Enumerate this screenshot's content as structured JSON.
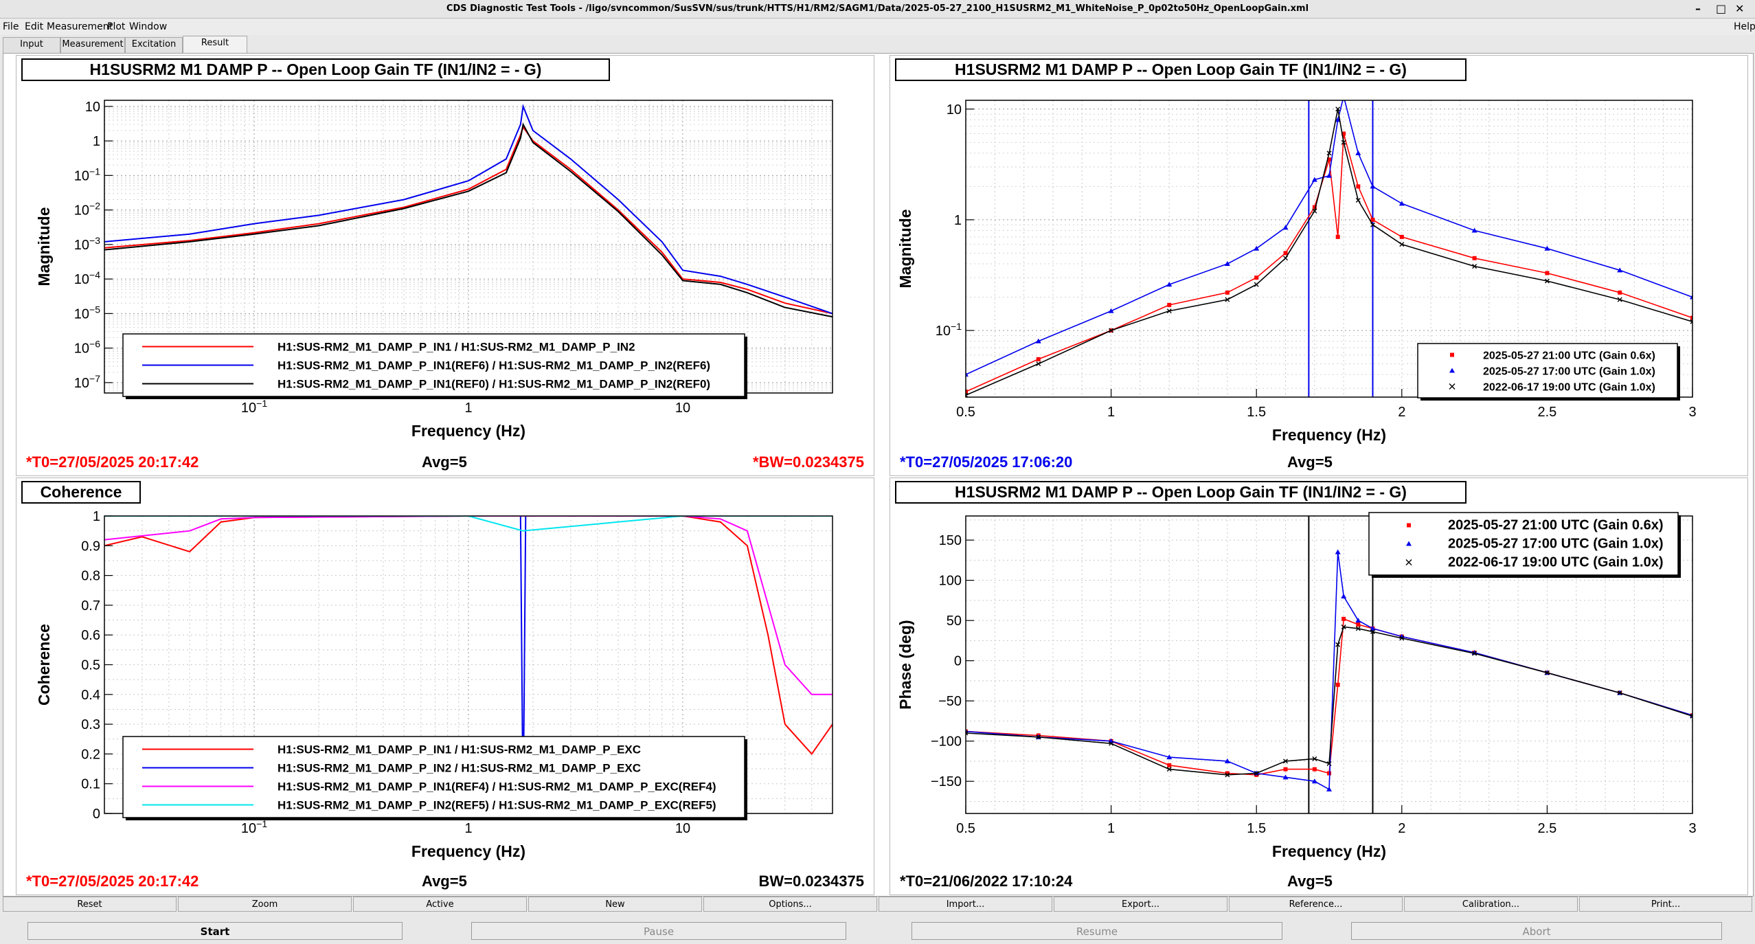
{
  "window": {
    "title": "CDS Diagnostic Test Tools - /ligo/svncommon/SusSVN/sus/trunk/HTTS/H1/RM2/SAGM1/Data/2025-05-27_2100_H1SUSRM2_M1_WhiteNoise_P_0p02to50Hz_OpenLoopGain.xml",
    "controls": [
      "–",
      "□",
      "✕"
    ]
  },
  "menu": {
    "items": [
      "File",
      "Edit",
      "Measurement",
      "Plot",
      "Window"
    ],
    "help": "Help"
  },
  "tabs": [
    "Input",
    "Measurement",
    "Excitation",
    "Result"
  ],
  "active_tab": "Result",
  "panels": {
    "tl": {
      "title": "H1SUSRM2 M1 DAMP P -- Open Loop Gain TF (IN1/IN2 = - G)",
      "ylabel": "Magnitude",
      "xlabel": "Frequency (Hz)",
      "yticks": [
        "10",
        "1",
        "10^-1",
        "10^-2",
        "10^-3",
        "10^-4",
        "10^-5",
        "10^-6",
        "10^-7"
      ],
      "xticks": [
        "10^-1",
        "1",
        "10"
      ],
      "legend": [
        {
          "label": "H1:SUS-RM2_M1_DAMP_P_IN1 / H1:SUS-RM2_M1_DAMP_P_IN2",
          "color": "#ff0000"
        },
        {
          "label": "H1:SUS-RM2_M1_DAMP_P_IN1(REF6) / H1:SUS-RM2_M1_DAMP_P_IN2(REF6)",
          "color": "#0000ee"
        },
        {
          "label": "H1:SUS-RM2_M1_DAMP_P_IN1(REF0) / H1:SUS-RM2_M1_DAMP_P_IN2(REF0)",
          "color": "#000000"
        }
      ],
      "status_left": "*T0=27/05/2025 20:17:42",
      "status_mid": "Avg=5",
      "status_right": "*BW=0.0234375"
    },
    "tr": {
      "title": "H1SUSRM2 M1 DAMP P -- Open Loop Gain TF (IN1/IN2 = - G)",
      "ylabel": "Magnitude",
      "xlabel": "Frequency (Hz)",
      "yticks": [
        "10",
        "1",
        "10^-1"
      ],
      "xticks": [
        "0.5",
        "1",
        "1.5",
        "2",
        "2.5",
        "3"
      ],
      "legend": [
        {
          "label": "2025-05-27 21:00 UTC (Gain 0.6x)",
          "color": "#ff0000",
          "marker": "■"
        },
        {
          "label": "2025-05-27 17:00 UTC (Gain 1.0x)",
          "color": "#0000ee",
          "marker": "▲"
        },
        {
          "label": "2022-06-17 19:00 UTC (Gain 1.0x)",
          "color": "#000000",
          "marker": "×"
        }
      ],
      "status_left": "*T0=27/05/2025 17:06:20",
      "status_mid": "Avg=5"
    },
    "bl": {
      "title": "Coherence",
      "ylabel": "Coherence",
      "xlabel": "Frequency (Hz)",
      "yticks": [
        "1",
        "0.9",
        "0.8",
        "0.7",
        "0.6",
        "0.5",
        "0.4",
        "0.3",
        "0.2",
        "0.1",
        "0"
      ],
      "xticks": [
        "10^-1",
        "1",
        "10"
      ],
      "legend": [
        {
          "label": "H1:SUS-RM2_M1_DAMP_P_IN1 / H1:SUS-RM2_M1_DAMP_P_EXC",
          "color": "#ff0000"
        },
        {
          "label": "H1:SUS-RM2_M1_DAMP_P_IN2 / H1:SUS-RM2_M1_DAMP_P_EXC",
          "color": "#0000ee"
        },
        {
          "label": "H1:SUS-RM2_M1_DAMP_P_IN1(REF4) / H1:SUS-RM2_M1_DAMP_P_EXC(REF4)",
          "color": "#ff00ff"
        },
        {
          "label": "H1:SUS-RM2_M1_DAMP_P_IN2(REF5) / H1:SUS-RM2_M1_DAMP_P_EXC(REF5)",
          "color": "#00e5ee"
        }
      ],
      "status_left": "*T0=27/05/2025 20:17:42",
      "status_mid": "Avg=5",
      "status_right": "BW=0.0234375"
    },
    "br": {
      "title": "H1SUSRM2 M1 DAMP P -- Open Loop Gain TF (IN1/IN2 = - G)",
      "ylabel": "Phase (deg)",
      "xlabel": "Frequency (Hz)",
      "yticks": [
        "150",
        "100",
        "50",
        "0",
        "−50",
        "−100",
        "−150"
      ],
      "xticks": [
        "0.5",
        "1",
        "1.5",
        "2",
        "2.5",
        "3"
      ],
      "legend": [
        {
          "label": "2025-05-27 21:00 UTC (Gain 0.6x)",
          "color": "#ff0000",
          "marker": "■"
        },
        {
          "label": "2025-05-27 17:00 UTC (Gain 1.0x)",
          "color": "#0000ee",
          "marker": "▲"
        },
        {
          "label": "2022-06-17 19:00 UTC (Gain 1.0x)",
          "color": "#000000",
          "marker": "×"
        }
      ],
      "status_left": "*T0=21/06/2022 17:10:24",
      "status_mid": "Avg=5"
    }
  },
  "toolbar": [
    "Reset",
    "Zoom",
    "Active",
    "New",
    "Options...",
    "Import...",
    "Export...",
    "Reference...",
    "Calibration...",
    "Print..."
  ],
  "actions": [
    {
      "label": "Start",
      "enabled": true
    },
    {
      "label": "Pause",
      "enabled": false
    },
    {
      "label": "Resume",
      "enabled": false
    },
    {
      "label": "Abort",
      "enabled": false
    }
  ],
  "chart_data": [
    {
      "type": "line",
      "scale": "loglog",
      "title": "H1SUSRM2 M1 DAMP P -- Open Loop Gain TF (IN1/IN2 = - G)",
      "xlabel": "Frequency (Hz)",
      "ylabel": "Magnitude",
      "xlim": [
        0.02,
        50
      ],
      "ylim": [
        5e-08,
        15
      ],
      "grid": true,
      "legend_position": "bottom",
      "series": [
        {
          "name": "H1:SUS-RM2_M1_DAMP_P_IN1 / H1:SUS-RM2_M1_DAMP_P_IN2",
          "color": "#ff0000",
          "x": [
            0.02,
            0.05,
            0.1,
            0.2,
            0.5,
            1.0,
            1.5,
            1.75,
            1.8,
            2.0,
            3.0,
            5.0,
            8.0,
            10.0,
            15.0,
            20.0,
            30.0,
            50.0
          ],
          "y": [
            0.0008,
            0.0013,
            0.0022,
            0.004,
            0.012,
            0.04,
            0.15,
            1.5,
            2.5,
            1.0,
            0.15,
            0.01,
            0.0006,
            0.0001,
            8e-05,
            5e-05,
            2e-05,
            1e-05
          ]
        },
        {
          "name": "H1:SUS-RM2_M1_DAMP_P_IN1(REF6) / H1:SUS-RM2_M1_DAMP_P_IN2(REF6)",
          "color": "#0000ee",
          "x": [
            0.02,
            0.05,
            0.1,
            0.2,
            0.5,
            1.0,
            1.5,
            1.75,
            1.8,
            2.0,
            3.0,
            5.0,
            8.0,
            10.0,
            15.0,
            20.0,
            30.0,
            50.0
          ],
          "y": [
            0.0012,
            0.002,
            0.004,
            0.007,
            0.02,
            0.07,
            0.3,
            3.0,
            10.0,
            2.0,
            0.3,
            0.02,
            0.0012,
            0.00018,
            0.00012,
            7e-05,
            3e-05,
            1e-05
          ]
        },
        {
          "name": "H1:SUS-RM2_M1_DAMP_P_IN1(REF0) / H1:SUS-RM2_M1_DAMP_P_IN2(REF0)",
          "color": "#000000",
          "x": [
            0.02,
            0.05,
            0.1,
            0.2,
            0.5,
            1.0,
            1.5,
            1.75,
            1.8,
            2.0,
            3.0,
            5.0,
            8.0,
            10.0,
            15.0,
            20.0,
            30.0,
            50.0
          ],
          "y": [
            0.0007,
            0.0012,
            0.002,
            0.0035,
            0.011,
            0.035,
            0.12,
            1.2,
            3.0,
            0.9,
            0.13,
            0.009,
            0.0005,
            9e-05,
            7e-05,
            4e-05,
            1.5e-05,
            8e-06
          ]
        }
      ]
    },
    {
      "type": "scatter",
      "scale": "linear-x log-y",
      "title": "H1SUSRM2 M1 DAMP P -- Open Loop Gain TF (IN1/IN2 = - G)",
      "xlabel": "Frequency (Hz)",
      "ylabel": "Magnitude",
      "xlim": [
        0.5,
        3.0
      ],
      "ylim": [
        0.025,
        12
      ],
      "grid": true,
      "legend_position": "bottom-right",
      "vlines": [
        1.68,
        1.9
      ],
      "series": [
        {
          "name": "2025-05-27 21:00 UTC (Gain 0.6x)",
          "color": "#ff0000",
          "x": [
            0.5,
            0.75,
            1.0,
            1.2,
            1.4,
            1.5,
            1.6,
            1.7,
            1.75,
            1.78,
            1.8,
            1.85,
            1.9,
            2.0,
            2.25,
            2.5,
            2.75,
            3.0
          ],
          "y": [
            0.028,
            0.055,
            0.1,
            0.17,
            0.22,
            0.3,
            0.5,
            1.3,
            3.5,
            0.7,
            6.0,
            2.0,
            1.0,
            0.7,
            0.45,
            0.33,
            0.22,
            0.13
          ]
        },
        {
          "name": "2025-05-27 17:00 UTC (Gain 1.0x)",
          "color": "#0000ee",
          "x": [
            0.5,
            0.75,
            1.0,
            1.2,
            1.4,
            1.5,
            1.6,
            1.7,
            1.75,
            1.78,
            1.8,
            1.85,
            1.9,
            2.0,
            2.25,
            2.5,
            2.75,
            3.0
          ],
          "y": [
            0.04,
            0.08,
            0.15,
            0.26,
            0.4,
            0.55,
            0.85,
            2.3,
            2.5,
            8.0,
            13.0,
            4.0,
            2.0,
            1.4,
            0.8,
            0.55,
            0.35,
            0.2
          ]
        },
        {
          "name": "2022-06-17 19:00 UTC (Gain 1.0x)",
          "color": "#000000",
          "x": [
            0.5,
            0.75,
            1.0,
            1.2,
            1.4,
            1.5,
            1.6,
            1.7,
            1.75,
            1.78,
            1.8,
            1.85,
            1.9,
            2.0,
            2.25,
            2.5,
            2.75,
            3.0
          ],
          "y": [
            0.026,
            0.05,
            0.1,
            0.15,
            0.19,
            0.26,
            0.45,
            1.2,
            4.0,
            10.0,
            5.0,
            1.5,
            0.9,
            0.6,
            0.38,
            0.28,
            0.19,
            0.12
          ]
        }
      ]
    },
    {
      "type": "line",
      "scale": "log-x linear-y",
      "title": "Coherence",
      "xlabel": "Frequency (Hz)",
      "ylabel": "Coherence",
      "xlim": [
        0.02,
        50
      ],
      "ylim": [
        0,
        1
      ],
      "grid": true,
      "legend_position": "bottom",
      "series": [
        {
          "name": "H1:SUS-RM2_M1_DAMP_P_IN1 / H1:SUS-RM2_M1_DAMP_P_EXC",
          "color": "#ff0000",
          "x": [
            0.02,
            0.03,
            0.05,
            0.07,
            0.1,
            1.0,
            10.0,
            15.0,
            20.0,
            25.0,
            30.0,
            40.0,
            50.0
          ],
          "y": [
            0.9,
            0.93,
            0.88,
            0.98,
            0.995,
            1.0,
            1.0,
            0.98,
            0.9,
            0.6,
            0.3,
            0.2,
            0.3
          ]
        },
        {
          "name": "H1:SUS-RM2_M1_DAMP_P_IN2 / H1:SUS-RM2_M1_DAMP_P_EXC",
          "color": "#0000ee",
          "x": [
            0.02,
            1.0,
            1.75,
            1.8,
            1.85,
            10.0,
            50.0
          ],
          "y": [
            1.0,
            1.0,
            1.0,
            0.0,
            1.0,
            1.0,
            1.0
          ]
        },
        {
          "name": "H1:SUS-RM2_M1_DAMP_P_IN1(REF4) / H1:SUS-RM2_M1_DAMP_P_EXC(REF4)",
          "color": "#ff00ff",
          "x": [
            0.02,
            0.05,
            0.07,
            0.1,
            1.0,
            10.0,
            15.0,
            20.0,
            30.0,
            40.0,
            50.0
          ],
          "y": [
            0.92,
            0.95,
            0.99,
            0.995,
            1.0,
            1.0,
            0.99,
            0.95,
            0.5,
            0.4,
            0.4
          ]
        },
        {
          "name": "H1:SUS-RM2_M1_DAMP_P_IN2(REF5) / H1:SUS-RM2_M1_DAMP_P_EXC(REF5)",
          "color": "#00e5ee",
          "x": [
            0.02,
            1.0,
            1.8,
            10.0,
            50.0
          ],
          "y": [
            1.0,
            1.0,
            0.95,
            1.0,
            1.0
          ]
        }
      ]
    },
    {
      "type": "scatter",
      "scale": "linear",
      "title": "H1SUSRM2 M1 DAMP P -- Open Loop Gain TF (IN1/IN2 = - G)",
      "xlabel": "Frequency (Hz)",
      "ylabel": "Phase (deg)",
      "xlim": [
        0.5,
        3.0
      ],
      "ylim": [
        -190,
        180
      ],
      "grid": true,
      "legend_position": "top-right",
      "vlines": [
        1.68,
        1.9
      ],
      "series": [
        {
          "name": "2025-05-27 21:00 UTC (Gain 0.6x)",
          "color": "#ff0000",
          "x": [
            0.5,
            0.75,
            1.0,
            1.2,
            1.4,
            1.5,
            1.6,
            1.7,
            1.75,
            1.78,
            1.8,
            1.85,
            1.9,
            2.0,
            2.25,
            2.5,
            2.75,
            3.0
          ],
          "y": [
            -88,
            -93,
            -100,
            -130,
            -140,
            -142,
            -135,
            -135,
            -140,
            -30,
            52,
            45,
            40,
            30,
            10,
            -15,
            -40,
            -68
          ]
        },
        {
          "name": "2025-05-27 17:00 UTC (Gain 1.0x)",
          "color": "#0000ee",
          "x": [
            0.5,
            0.75,
            1.0,
            1.2,
            1.4,
            1.5,
            1.6,
            1.7,
            1.75,
            1.78,
            1.8,
            1.85,
            1.9,
            2.0,
            2.25,
            2.5,
            2.75,
            3.0
          ],
          "y": [
            -88,
            -95,
            -100,
            -120,
            -125,
            -140,
            -145,
            -150,
            -160,
            135,
            80,
            50,
            40,
            30,
            10,
            -15,
            -40,
            -68
          ]
        },
        {
          "name": "2022-06-17 19:00 UTC (Gain 1.0x)",
          "color": "#000000",
          "x": [
            0.5,
            0.75,
            1.0,
            1.2,
            1.4,
            1.5,
            1.6,
            1.7,
            1.75,
            1.78,
            1.8,
            1.85,
            1.9,
            2.0,
            2.25,
            2.5,
            2.75,
            3.0
          ],
          "y": [
            -90,
            -95,
            -103,
            -135,
            -142,
            -140,
            -125,
            -122,
            -128,
            20,
            42,
            40,
            36,
            28,
            9,
            -15,
            -40,
            -69
          ]
        }
      ]
    }
  ]
}
